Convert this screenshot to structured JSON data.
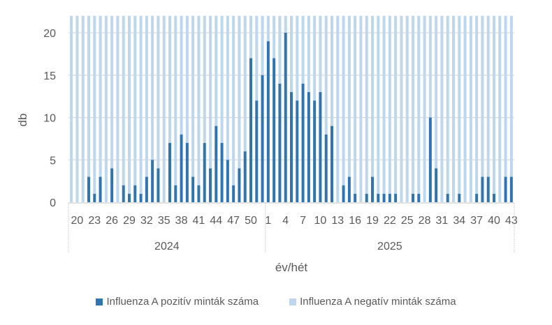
{
  "chart_data": {
    "type": "bar",
    "stacked": true,
    "title": "",
    "xlabel": "év/hét",
    "ylabel": "db",
    "ylim": [
      0,
      22
    ],
    "yticks": [
      0,
      5,
      10,
      15,
      20
    ],
    "grid": "horizontal",
    "legend_position": "bottom",
    "groups": [
      {
        "label": "2024",
        "weeks": [
          19,
          20,
          21,
          22,
          23,
          24,
          25,
          26,
          27,
          28,
          29,
          30,
          31,
          32,
          33,
          34,
          35,
          36,
          37,
          38,
          39,
          40,
          41,
          42,
          43,
          44,
          45,
          46,
          47,
          48,
          49,
          50,
          51,
          52
        ],
        "positive": [
          0,
          0,
          0,
          3,
          1,
          3,
          0,
          4,
          0,
          2,
          1,
          2,
          1,
          3,
          5,
          4,
          0,
          7,
          2,
          8,
          7,
          3,
          2,
          7,
          4,
          9,
          7,
          5,
          2,
          4,
          6,
          17,
          12,
          15
        ],
        "tick_labels": [
          "20",
          "23",
          "26",
          "29",
          "32",
          "35",
          "38",
          "41",
          "44",
          "47",
          "50"
        ]
      },
      {
        "label": "2025",
        "weeks": [
          1,
          2,
          3,
          4,
          5,
          6,
          7,
          8,
          9,
          10,
          11,
          12,
          13,
          14,
          15,
          16,
          17,
          18,
          19,
          20,
          21,
          22,
          23,
          24,
          25,
          26,
          27,
          28,
          29,
          30,
          31,
          32,
          33,
          34,
          35,
          36,
          37,
          38,
          39,
          40,
          41,
          42,
          43
        ],
        "positive": [
          19,
          17,
          14,
          20,
          13,
          12,
          14,
          13,
          12,
          13,
          8,
          9,
          0,
          2,
          3,
          1,
          0,
          1,
          3,
          1,
          1,
          1,
          1,
          0,
          0,
          1,
          1,
          0,
          10,
          4,
          0,
          1,
          0,
          1,
          0,
          0,
          1,
          3,
          3,
          1,
          0,
          3,
          3
        ],
        "tick_labels": [
          "1",
          "4",
          "7",
          "10",
          "13",
          "16",
          "19",
          "22",
          "25",
          "28",
          "31",
          "34",
          "37",
          "40",
          "43"
        ]
      }
    ],
    "series": [
      {
        "name": "Influenza A pozitív minták száma",
        "color": "#2E75B6",
        "role": "positive"
      },
      {
        "name": "Influenza A negatív minták száma",
        "color": "#BDD7EE",
        "role": "negative",
        "note": "stacked on top, extends beyond axis maximum"
      }
    ]
  },
  "axis": {
    "y_title": "db",
    "x_title": "év/hét"
  },
  "legend": {
    "items": [
      {
        "label": "Influenza A pozitív minták száma",
        "color": "#2E75B6"
      },
      {
        "label": "Influenza A negatív minták száma",
        "color": "#BDD7EE"
      }
    ]
  },
  "colors": {
    "positive": "#2E75B6",
    "negative": "#BDD7EE",
    "grid": "#D9D9D9",
    "text": "#595959"
  }
}
